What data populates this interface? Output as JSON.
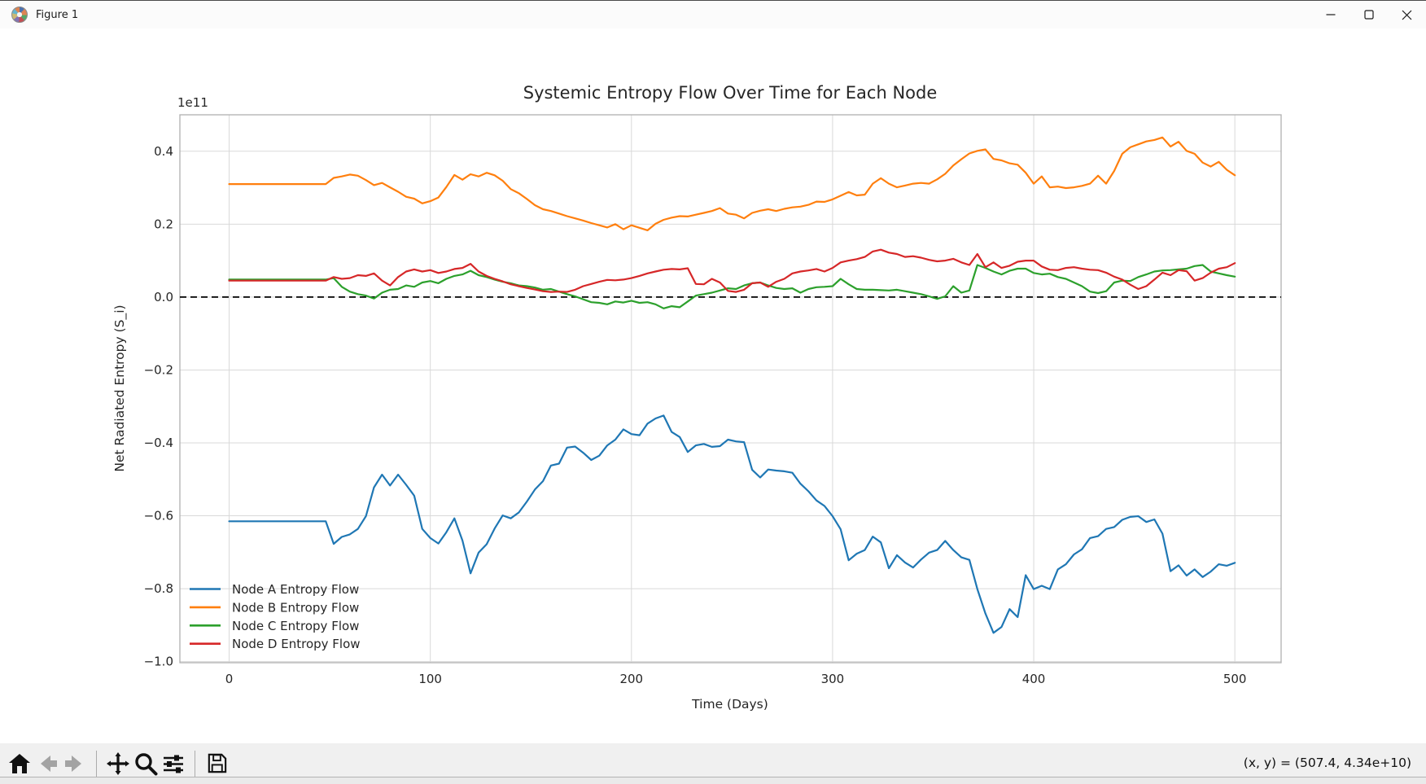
{
  "window": {
    "title": "Figure 1"
  },
  "toolbar": {
    "icons": [
      {
        "name": "home",
        "enabled": true
      },
      {
        "name": "back",
        "enabled": false
      },
      {
        "name": "forward",
        "enabled": false
      },
      {
        "name": "separator"
      },
      {
        "name": "pan",
        "enabled": true
      },
      {
        "name": "zoom",
        "enabled": true
      },
      {
        "name": "subplots",
        "enabled": true
      },
      {
        "name": "separator"
      },
      {
        "name": "save",
        "enabled": true
      }
    ],
    "coordinate_readout": "(x, y) = (507.4, 4.34e+10)"
  },
  "chart_data": {
    "type": "line",
    "title": "Systemic Entropy Flow Over Time for Each Node",
    "xlabel": "Time (Days)",
    "ylabel": "Net Radiated Entropy (S_i)",
    "offset_text": "1e11",
    "units_note": "y values in units of 1e11",
    "grid": true,
    "legend_position": "lower left",
    "xlim": [
      -24.5,
      523
    ],
    "ylim": [
      -1.003,
      0.5
    ],
    "x_ticks": [
      0,
      100,
      200,
      300,
      400,
      500
    ],
    "x_tick_labels": [
      "0",
      "100",
      "200",
      "300",
      "400",
      "500"
    ],
    "y_ticks": [
      -1.0,
      -0.8,
      -0.6,
      -0.4,
      -0.2,
      0.0,
      0.2,
      0.4
    ],
    "y_tick_labels": [
      "−1.0",
      "−0.8",
      "−0.6",
      "−0.4",
      "−0.2",
      "0.0",
      "0.2",
      "0.4"
    ],
    "zero_line": {
      "y": 0,
      "style": "dashed",
      "color": "#000000"
    },
    "x_start": 0,
    "x_step": 4,
    "series": [
      {
        "name": "Node A Entropy Flow",
        "color": "#1f77b4",
        "values": [
          -0.615,
          -0.615,
          -0.615,
          -0.615,
          -0.615,
          -0.615,
          -0.615,
          -0.615,
          -0.615,
          -0.615,
          -0.615,
          -0.615,
          -0.615,
          -0.677,
          -0.658,
          -0.651,
          -0.636,
          -0.601,
          -0.522,
          -0.487,
          -0.517,
          -0.487,
          -0.515,
          -0.545,
          -0.636,
          -0.661,
          -0.676,
          -0.645,
          -0.607,
          -0.668,
          -0.758,
          -0.701,
          -0.678,
          -0.635,
          -0.599,
          -0.607,
          -0.591,
          -0.561,
          -0.528,
          -0.505,
          -0.462,
          -0.457,
          -0.413,
          -0.41,
          -0.427,
          -0.447,
          -0.435,
          -0.407,
          -0.391,
          -0.363,
          -0.376,
          -0.379,
          -0.347,
          -0.333,
          -0.325,
          -0.37,
          -0.384,
          -0.425,
          -0.407,
          -0.403,
          -0.411,
          -0.409,
          -0.391,
          -0.396,
          -0.398,
          -0.474,
          -0.495,
          -0.473,
          -0.476,
          -0.478,
          -0.482,
          -0.512,
          -0.533,
          -0.558,
          -0.573,
          -0.601,
          -0.637,
          -0.722,
          -0.704,
          -0.694,
          -0.657,
          -0.673,
          -0.744,
          -0.708,
          -0.728,
          -0.742,
          -0.72,
          -0.701,
          -0.694,
          -0.669,
          -0.694,
          -0.714,
          -0.721,
          -0.801,
          -0.868,
          -0.921,
          -0.905,
          -0.856,
          -0.878,
          -0.763,
          -0.801,
          -0.792,
          -0.801,
          -0.747,
          -0.733,
          -0.706,
          -0.692,
          -0.661,
          -0.656,
          -0.636,
          -0.631,
          -0.611,
          -0.603,
          -0.601,
          -0.617,
          -0.61,
          -0.649,
          -0.752,
          -0.736,
          -0.764,
          -0.747,
          -0.768,
          -0.753,
          -0.733,
          -0.737,
          -0.729
        ]
      },
      {
        "name": "Node B Entropy Flow",
        "color": "#ff7f0e",
        "values": [
          0.31,
          0.31,
          0.31,
          0.31,
          0.31,
          0.31,
          0.31,
          0.31,
          0.31,
          0.31,
          0.31,
          0.31,
          0.31,
          0.327,
          0.331,
          0.336,
          0.333,
          0.321,
          0.307,
          0.313,
          0.301,
          0.289,
          0.275,
          0.27,
          0.257,
          0.263,
          0.273,
          0.302,
          0.335,
          0.322,
          0.337,
          0.331,
          0.341,
          0.334,
          0.319,
          0.296,
          0.285,
          0.269,
          0.252,
          0.241,
          0.236,
          0.229,
          0.222,
          0.216,
          0.21,
          0.203,
          0.197,
          0.191,
          0.2,
          0.186,
          0.197,
          0.19,
          0.183,
          0.201,
          0.212,
          0.218,
          0.222,
          0.221,
          0.226,
          0.231,
          0.236,
          0.244,
          0.229,
          0.226,
          0.216,
          0.231,
          0.237,
          0.241,
          0.236,
          0.242,
          0.246,
          0.248,
          0.253,
          0.262,
          0.261,
          0.268,
          0.278,
          0.288,
          0.279,
          0.281,
          0.311,
          0.326,
          0.311,
          0.301,
          0.306,
          0.311,
          0.313,
          0.311,
          0.323,
          0.338,
          0.361,
          0.378,
          0.394,
          0.401,
          0.405,
          0.379,
          0.375,
          0.367,
          0.363,
          0.341,
          0.311,
          0.331,
          0.301,
          0.303,
          0.299,
          0.301,
          0.305,
          0.311,
          0.333,
          0.311,
          0.346,
          0.393,
          0.411,
          0.419,
          0.427,
          0.431,
          0.438,
          0.413,
          0.426,
          0.401,
          0.393,
          0.369,
          0.358,
          0.371,
          0.349,
          0.334
        ]
      },
      {
        "name": "Node C Entropy Flow",
        "color": "#2ca02c",
        "values": [
          0.048,
          0.048,
          0.048,
          0.048,
          0.048,
          0.048,
          0.048,
          0.048,
          0.048,
          0.048,
          0.048,
          0.048,
          0.048,
          0.052,
          0.028,
          0.015,
          0.008,
          0.004,
          -0.004,
          0.012,
          0.02,
          0.022,
          0.032,
          0.028,
          0.04,
          0.044,
          0.038,
          0.05,
          0.058,
          0.062,
          0.072,
          0.06,
          0.055,
          0.048,
          0.042,
          0.038,
          0.032,
          0.03,
          0.026,
          0.02,
          0.022,
          0.015,
          0.008,
          0.002,
          -0.006,
          -0.014,
          -0.016,
          -0.02,
          -0.012,
          -0.015,
          -0.01,
          -0.016,
          -0.014,
          -0.02,
          -0.031,
          -0.025,
          -0.028,
          -0.012,
          0.004,
          0.008,
          0.012,
          0.018,
          0.024,
          0.022,
          0.032,
          0.038,
          0.04,
          0.032,
          0.025,
          0.022,
          0.024,
          0.012,
          0.022,
          0.027,
          0.028,
          0.03,
          0.05,
          0.035,
          0.022,
          0.02,
          0.02,
          0.019,
          0.018,
          0.02,
          0.016,
          0.012,
          0.008,
          0.002,
          -0.005,
          0.002,
          0.03,
          0.012,
          0.018,
          0.088,
          0.08,
          0.07,
          0.062,
          0.072,
          0.078,
          0.078,
          0.066,
          0.062,
          0.064,
          0.055,
          0.05,
          0.04,
          0.03,
          0.015,
          0.011,
          0.016,
          0.04,
          0.045,
          0.044,
          0.055,
          0.062,
          0.07,
          0.073,
          0.074,
          0.076,
          0.078,
          0.085,
          0.088,
          0.07,
          0.065,
          0.06,
          0.056
        ]
      },
      {
        "name": "Node D Entropy Flow",
        "color": "#d62728",
        "values": [
          0.045,
          0.045,
          0.045,
          0.045,
          0.045,
          0.045,
          0.045,
          0.045,
          0.045,
          0.045,
          0.045,
          0.045,
          0.045,
          0.055,
          0.05,
          0.052,
          0.06,
          0.058,
          0.065,
          0.045,
          0.032,
          0.055,
          0.07,
          0.076,
          0.07,
          0.074,
          0.066,
          0.07,
          0.077,
          0.08,
          0.091,
          0.07,
          0.058,
          0.05,
          0.043,
          0.035,
          0.03,
          0.025,
          0.021,
          0.016,
          0.014,
          0.015,
          0.014,
          0.02,
          0.03,
          0.036,
          0.042,
          0.047,
          0.046,
          0.048,
          0.052,
          0.058,
          0.065,
          0.07,
          0.075,
          0.077,
          0.076,
          0.079,
          0.036,
          0.035,
          0.05,
          0.04,
          0.017,
          0.014,
          0.02,
          0.038,
          0.04,
          0.028,
          0.042,
          0.05,
          0.065,
          0.07,
          0.073,
          0.077,
          0.07,
          0.08,
          0.095,
          0.1,
          0.104,
          0.11,
          0.125,
          0.13,
          0.122,
          0.118,
          0.11,
          0.112,
          0.108,
          0.102,
          0.098,
          0.1,
          0.105,
          0.095,
          0.088,
          0.118,
          0.082,
          0.095,
          0.08,
          0.086,
          0.097,
          0.1,
          0.1,
          0.084,
          0.075,
          0.074,
          0.08,
          0.082,
          0.078,
          0.075,
          0.074,
          0.067,
          0.056,
          0.048,
          0.034,
          0.022,
          0.03,
          0.048,
          0.067,
          0.06,
          0.074,
          0.071,
          0.045,
          0.052,
          0.067,
          0.078,
          0.082,
          0.093
        ]
      }
    ],
    "colors": {
      "grid": "#d9d9d9",
      "spine": "#b0b0b0",
      "text": "#262626",
      "series": [
        "#1f77b4",
        "#ff7f0e",
        "#2ca02c",
        "#d62728"
      ]
    }
  }
}
